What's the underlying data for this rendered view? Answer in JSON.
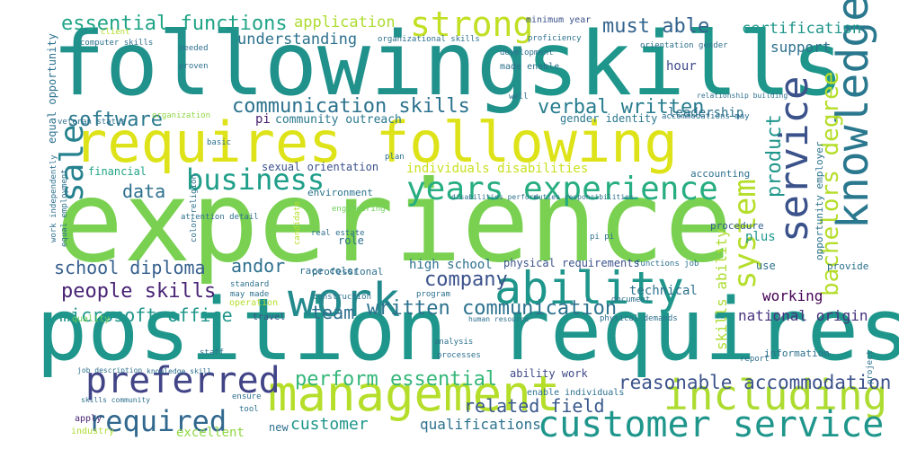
{
  "chart_data": {
    "type": "wordcloud",
    "background": "#ffffff",
    "palette": "viridis",
    "words": [
      {
        "text": "experience",
        "weight": 100,
        "color": "#7ad151"
      },
      {
        "text": "position requires",
        "weight": 90,
        "color": "#1f968b"
      },
      {
        "text": "following",
        "weight": 85,
        "color": "#21918c"
      },
      {
        "text": "skills",
        "weight": 85,
        "color": "#1f968b"
      },
      {
        "text": "requires following",
        "weight": 60,
        "color": "#dde318"
      },
      {
        "text": "management",
        "weight": 55,
        "color": "#b5de2b"
      },
      {
        "text": "knowledge",
        "weight": 50,
        "color": "#2a788e"
      },
      {
        "text": "ability",
        "weight": 50,
        "color": "#1f968b"
      },
      {
        "text": "work",
        "weight": 50,
        "color": "#238a8d"
      },
      {
        "text": "including",
        "weight": 48,
        "color": "#addc30"
      },
      {
        "text": "service",
        "weight": 45,
        "color": "#3b528b"
      },
      {
        "text": "customer service",
        "weight": 42,
        "color": "#1f968b"
      },
      {
        "text": "preferred",
        "weight": 42,
        "color": "#414487"
      },
      {
        "text": "years experience",
        "weight": 40,
        "color": "#26ad81"
      },
      {
        "text": "strong",
        "weight": 40,
        "color": "#c2df23"
      },
      {
        "text": "sale",
        "weight": 38,
        "color": "#26828e"
      },
      {
        "text": "system",
        "weight": 36,
        "color": "#b5de2b"
      },
      {
        "text": "business",
        "weight": 34,
        "color": "#1f9e89"
      },
      {
        "text": "required",
        "weight": 33,
        "color": "#31688e"
      },
      {
        "text": "bachelors degree",
        "weight": 28,
        "color": "#b5de2b"
      },
      {
        "text": "communication skills",
        "weight": 27,
        "color": "#2c728e"
      },
      {
        "text": "verbal written",
        "weight": 27,
        "color": "#287d8e"
      },
      {
        "text": "written communication",
        "weight": 26,
        "color": "#2c728e"
      },
      {
        "text": "people skills",
        "weight": 25,
        "color": "#482374"
      },
      {
        "text": "perform essential",
        "weight": 25,
        "color": "#35b779"
      },
      {
        "text": "essential functions",
        "weight": 24,
        "color": "#20a486"
      },
      {
        "text": "software",
        "weight": 24,
        "color": "#2a788e"
      },
      {
        "text": "must able",
        "weight": 24,
        "color": "#33638d"
      },
      {
        "text": "company",
        "weight": 24,
        "color": "#3b528b"
      },
      {
        "text": "product",
        "weight": 22,
        "color": "#1f968b"
      },
      {
        "text": "reasonable accommodation",
        "weight": 22,
        "color": "#3b528b"
      },
      {
        "text": "team",
        "weight": 22,
        "color": "#2d708e"
      },
      {
        "text": "microsoft office",
        "weight": 21,
        "color": "#1f968b"
      },
      {
        "text": "school diploma",
        "weight": 21,
        "color": "#355f8d"
      },
      {
        "text": "andor",
        "weight": 21,
        "color": "#2d708e"
      },
      {
        "text": "data",
        "weight": 21,
        "color": "#2d708e"
      },
      {
        "text": "related field",
        "weight": 21,
        "color": "#38598c"
      },
      {
        "text": "customer",
        "weight": 20,
        "color": "#1f968b"
      },
      {
        "text": "application",
        "weight": 18,
        "color": "#addc30"
      },
      {
        "text": "certification",
        "weight": 18,
        "color": "#1f968b"
      },
      {
        "text": "understanding",
        "weight": 18,
        "color": "#2c728e"
      },
      {
        "text": "support",
        "weight": 17,
        "color": "#2d708e"
      },
      {
        "text": "skills ability",
        "weight": 17,
        "color": "#addc30"
      },
      {
        "text": "working",
        "weight": 17,
        "color": "#440154"
      },
      {
        "text": "national origin",
        "weight": 17,
        "color": "#46327e"
      },
      {
        "text": "leadership",
        "weight": 16,
        "color": "#2c728e"
      },
      {
        "text": "qualifications",
        "weight": 16,
        "color": "#2c728e"
      },
      {
        "text": "technical",
        "weight": 15,
        "color": "#2c728e"
      },
      {
        "text": "high school",
        "weight": 15,
        "color": "#2d708e"
      },
      {
        "text": "individuals disabilities",
        "weight": 15,
        "color": "#c8e020"
      },
      {
        "text": "hour",
        "weight": 15,
        "color": "#3e4989"
      },
      {
        "text": "pi",
        "weight": 15,
        "color": "#481f70"
      },
      {
        "text": "community outreach",
        "weight": 13,
        "color": "#2a788e"
      },
      {
        "text": "gender identity",
        "weight": 12,
        "color": "#2a788e"
      },
      {
        "text": "sexual orientation",
        "weight": 12,
        "color": "#3b528b"
      },
      {
        "text": "physical requirements",
        "weight": 12,
        "color": "#3b528b"
      },
      {
        "text": "excellent",
        "weight": 13,
        "color": "#8fd744"
      },
      {
        "text": "ability work",
        "weight": 12,
        "color": "#3e4989"
      },
      {
        "text": "equal opportunity",
        "weight": 12,
        "color": "#2c728e"
      },
      {
        "text": "opportunity employer",
        "weight": 11,
        "color": "#2c728e"
      },
      {
        "text": "financial",
        "weight": 12,
        "color": "#21a585"
      },
      {
        "text": "environment",
        "weight": 11,
        "color": "#2c728e"
      },
      {
        "text": "plus",
        "weight": 14,
        "color": "#1f968b"
      },
      {
        "text": "procedure",
        "weight": 12,
        "color": "#355f8d"
      },
      {
        "text": "accounting",
        "weight": 11,
        "color": "#2d708e"
      },
      {
        "text": "use",
        "weight": 12,
        "color": "#2d708e"
      },
      {
        "text": "provide",
        "weight": 11,
        "color": "#2d708e"
      },
      {
        "text": "role",
        "weight": 12,
        "color": "#2d708e"
      },
      {
        "text": "professional",
        "weight": 11,
        "color": "#2d708e"
      },
      {
        "text": "race color",
        "weight": 11,
        "color": "#2d708e"
      },
      {
        "text": "enable individuals",
        "weight": 10,
        "color": "#2d708e"
      },
      {
        "text": "new",
        "weight": 12,
        "color": "#2d708e"
      },
      {
        "text": "information",
        "weight": 11,
        "color": "#2d708e"
      },
      {
        "text": "quality",
        "weight": 10,
        "color": "#6ece58"
      },
      {
        "text": "operation",
        "weight": 10,
        "color": "#b5de2b"
      },
      {
        "text": "travel",
        "weight": 10,
        "color": "#3b528b"
      },
      {
        "text": "apply",
        "weight": 10,
        "color": "#482374"
      },
      {
        "text": "industry",
        "weight": 10,
        "color": "#addc30"
      },
      {
        "text": "minimum year",
        "weight": 10,
        "color": "#3b528b"
      },
      {
        "text": "organizational skills",
        "weight": 9,
        "color": "#2d708e"
      },
      {
        "text": "made enable",
        "weight": 10,
        "color": "#2d708e"
      },
      {
        "text": "development",
        "weight": 9,
        "color": "#2d708e"
      },
      {
        "text": "proficiency",
        "weight": 9,
        "color": "#2d708e"
      },
      {
        "text": "orientation gender",
        "weight": 9,
        "color": "#2d708e"
      },
      {
        "text": "accommodations may",
        "weight": 9,
        "color": "#2d708e"
      },
      {
        "text": "relationship building",
        "weight": 8,
        "color": "#2d708e"
      },
      {
        "text": "veteran status",
        "weight": 9,
        "color": "#2d708e"
      },
      {
        "text": "computer skills",
        "weight": 9,
        "color": "#2d708e"
      },
      {
        "text": "client",
        "weight": 9,
        "color": "#b5de2b"
      },
      {
        "text": "needed",
        "weight": 9,
        "color": "#2d708e"
      },
      {
        "text": "proven",
        "weight": 9,
        "color": "#2d708e"
      },
      {
        "text": "organization",
        "weight": 9,
        "color": "#8fd744"
      },
      {
        "text": "attention detail",
        "weight": 9,
        "color": "#2d708e"
      },
      {
        "text": "engineering",
        "weight": 9,
        "color": "#6ece58"
      },
      {
        "text": "disabilities perform",
        "weight": 8,
        "color": "#2d708e"
      },
      {
        "text": "duties responsibilities",
        "weight": 8,
        "color": "#2d708e"
      },
      {
        "text": "functions job",
        "weight": 9,
        "color": "#2d708e"
      },
      {
        "text": "pi pi",
        "weight": 9,
        "color": "#2d708e"
      },
      {
        "text": "real estate",
        "weight": 9,
        "color": "#2d708e"
      },
      {
        "text": "work independently",
        "weight": 9,
        "color": "#2d708e"
      },
      {
        "text": "equal employment",
        "weight": 9,
        "color": "#2d708e"
      },
      {
        "text": "color religion",
        "weight": 9,
        "color": "#2d708e"
      },
      {
        "text": "standard",
        "weight": 9,
        "color": "#2d708e"
      },
      {
        "text": "may made",
        "weight": 9,
        "color": "#2d708e"
      },
      {
        "text": "construction",
        "weight": 9,
        "color": "#2d708e"
      },
      {
        "text": "program",
        "weight": 9,
        "color": "#2d708e"
      },
      {
        "text": "human resource",
        "weight": 8,
        "color": "#2d708e"
      },
      {
        "text": "document",
        "weight": 9,
        "color": "#2d708e"
      },
      {
        "text": "physical demands",
        "weight": 9,
        "color": "#2d708e"
      },
      {
        "text": "analysis",
        "weight": 9,
        "color": "#2d708e"
      },
      {
        "text": "processes",
        "weight": 9,
        "color": "#2d708e"
      },
      {
        "text": "staff",
        "weight": 9,
        "color": "#2d708e"
      },
      {
        "text": "job description",
        "weight": 8,
        "color": "#2d708e"
      },
      {
        "text": "knowledge skill",
        "weight": 8,
        "color": "#2d708e"
      },
      {
        "text": "skills community",
        "weight": 8,
        "color": "#2d708e"
      },
      {
        "text": "ensure",
        "weight": 9,
        "color": "#2d708e"
      },
      {
        "text": "tool",
        "weight": 9,
        "color": "#2d708e"
      },
      {
        "text": "basic",
        "weight": 9,
        "color": "#2d708e"
      },
      {
        "text": "report",
        "weight": 9,
        "color": "#2d708e"
      },
      {
        "text": "project",
        "weight": 9,
        "color": "#2d708e"
      },
      {
        "text": "candidate",
        "weight": 9,
        "color": "#b5de2b"
      },
      {
        "text": "plan",
        "weight": 9,
        "color": "#2d708e"
      },
      {
        "text": "well",
        "weight": 9,
        "color": "#2d708e"
      }
    ]
  }
}
